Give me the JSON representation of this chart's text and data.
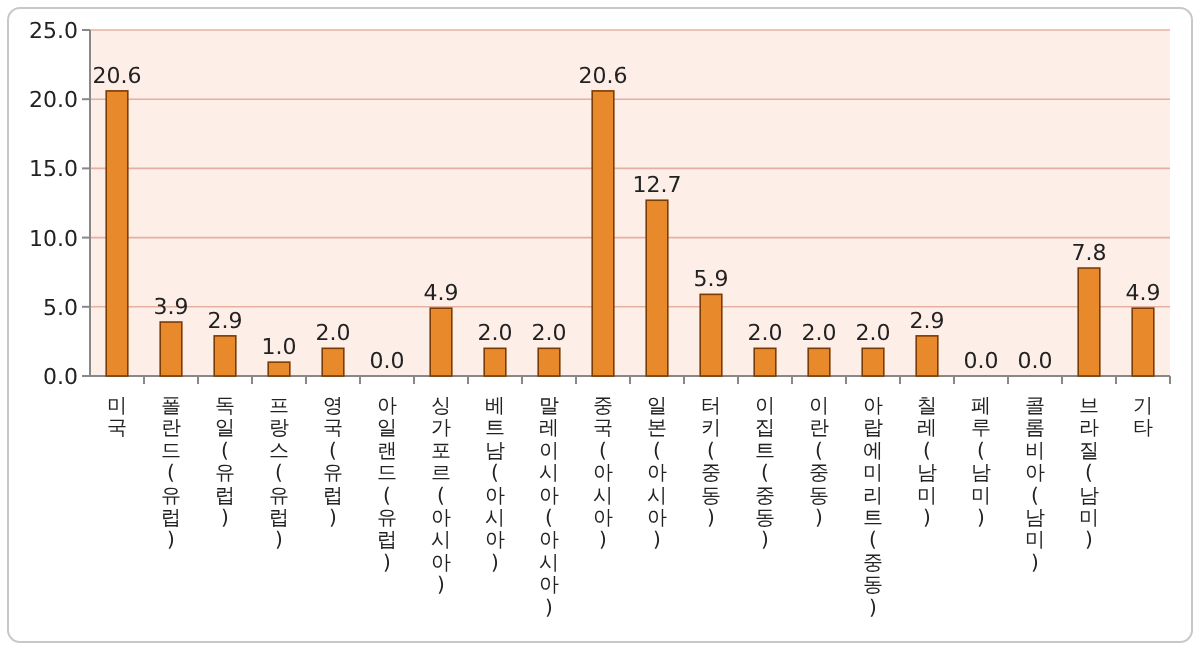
{
  "chart_data": {
    "type": "bar",
    "categories": [
      "미국",
      "폴란드(유럽)",
      "독일(유럽)",
      "프랑스(유럽)",
      "영국(유럽)",
      "아일랜드(유럽)",
      "싱가포르(아시아)",
      "베트남(아시아)",
      "말레이시아(아시아)",
      "중국(아시아)",
      "일본(아시아)",
      "터키(중동)",
      "이집트(중동)",
      "이란(중동)",
      "아랍에미리트(중동)",
      "칠레(남미)",
      "페루(남미)",
      "콜롬비아(남미)",
      "브라질(남미)",
      "기타"
    ],
    "values": [
      20.6,
      3.9,
      2.9,
      1.0,
      2.0,
      0.0,
      4.9,
      2.0,
      2.0,
      20.6,
      12.7,
      5.9,
      2.0,
      2.0,
      2.0,
      2.9,
      0.0,
      0.0,
      7.8,
      4.9
    ],
    "value_labels": [
      "20.6",
      "3.9",
      "2.9",
      "1.0",
      "2.0",
      "0.0",
      "4.9",
      "2.0",
      "2.0",
      "20.6",
      "12.7",
      "5.9",
      "2.0",
      "2.0",
      "2.0",
      "2.9",
      "0.0",
      "0.0",
      "7.8",
      "4.9"
    ],
    "color": "#e8892b",
    "ylim": [
      0,
      25
    ],
    "yticks": [
      {
        "value": 0,
        "label": "0.0"
      },
      {
        "value": 5,
        "label": "5.0"
      },
      {
        "value": 10,
        "label": "10.0"
      },
      {
        "value": 15,
        "label": "15.0"
      },
      {
        "value": 20,
        "label": "20.0"
      },
      {
        "value": 25,
        "label": "25.0"
      }
    ],
    "grid": "y"
  }
}
